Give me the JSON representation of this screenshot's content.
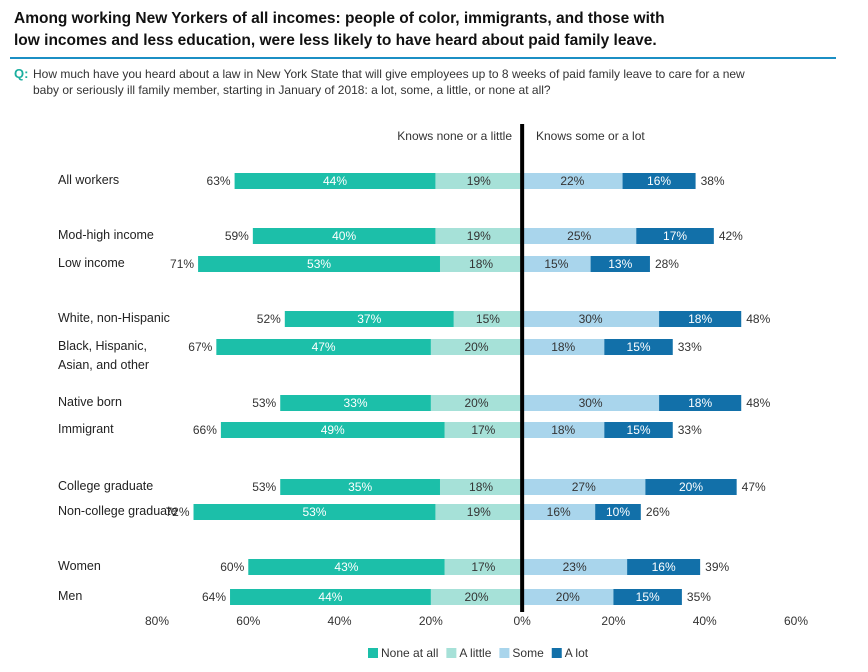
{
  "title": "Among working New Yorkers of all incomes: people of color, immigrants, and those with low incomes and less education, were less likely to have heard about paid family leave.",
  "chart_data": {
    "type": "diverging_bar",
    "question_label": "Q:",
    "question": "How much have you heard about a law in New York State that will give employees up to 8 weeks of paid family leave to care for a new baby or seriously ill family member, starting in January of 2018: a lot, some, a little, or none at all?",
    "left_heading": "Knows none or a little",
    "right_heading": "Knows some or a lot",
    "categories": [
      "All workers",
      "Mod-high income",
      "Low income",
      "White, non-Hispanic",
      "Black, Hispanic, Asian, and other",
      "Native born",
      "Immigrant",
      "College graduate",
      "Non-college graduate",
      "Women",
      "Men"
    ],
    "series": [
      {
        "name": "None at all",
        "side": "left",
        "color": "#1cbfa9",
        "text_color": "#ffffff",
        "values": [
          44,
          40,
          53,
          37,
          47,
          33,
          49,
          35,
          53,
          43,
          44
        ],
        "value_labels": [
          "44%",
          "40%",
          "53%",
          "37%",
          "47%",
          "33%",
          "49%",
          "35%",
          "53%",
          "43%",
          "44%"
        ]
      },
      {
        "name": "A little",
        "side": "left",
        "color": "#a6e1d8",
        "text_color": "#333333",
        "values": [
          19,
          19,
          18,
          15,
          20,
          20,
          17,
          18,
          19,
          17,
          20
        ],
        "value_labels": [
          "19%",
          "19%",
          "18%",
          "15%",
          "20%",
          "20%",
          "17%",
          "18%",
          "19%",
          "17%",
          "20%"
        ]
      },
      {
        "name": "Some",
        "side": "right",
        "color": "#a9d5ec",
        "text_color": "#333333",
        "values": [
          22,
          25,
          15,
          30,
          18,
          30,
          18,
          27,
          16,
          23,
          20
        ],
        "value_labels": [
          "22%",
          "25%",
          "15%",
          "30%",
          "18%",
          "30%",
          "18%",
          "27%",
          "16%",
          "23%",
          "20%"
        ]
      },
      {
        "name": "A lot",
        "side": "right",
        "color": "#1270a9",
        "text_color": "#ffffff",
        "values": [
          16,
          17,
          13,
          18,
          15,
          18,
          15,
          20,
          10,
          16,
          15
        ],
        "value_labels": [
          "16%",
          "17%",
          "13%",
          "18%",
          "15%",
          "18%",
          "15%",
          "20%",
          "10%",
          "16%",
          "15%"
        ]
      }
    ],
    "left_totals": {
      "values": [
        63,
        59,
        71,
        52,
        67,
        53,
        66,
        53,
        72,
        60,
        64
      ],
      "value_labels": [
        "63%",
        "59%",
        "71%",
        "52%",
        "67%",
        "53%",
        "66%",
        "53%",
        "72%",
        "60%",
        "64%"
      ]
    },
    "right_totals": {
      "values": [
        38,
        42,
        28,
        48,
        33,
        48,
        33,
        47,
        26,
        39,
        35
      ],
      "value_labels": [
        "38%",
        "42%",
        "28%",
        "48%",
        "33%",
        "48%",
        "33%",
        "47%",
        "26%",
        "39%",
        "35%"
      ]
    },
    "xlim": [
      -80,
      60
    ],
    "xticks": [
      {
        "value": -80,
        "label": "80%"
      },
      {
        "value": -60,
        "label": "60%"
      },
      {
        "value": -40,
        "label": "40%"
      },
      {
        "value": -20,
        "label": "20%"
      },
      {
        "value": 0,
        "label": "0%"
      },
      {
        "value": 20,
        "label": "20%"
      },
      {
        "value": 40,
        "label": "40%"
      },
      {
        "value": 60,
        "label": "60%"
      }
    ],
    "legend": "bottom"
  }
}
